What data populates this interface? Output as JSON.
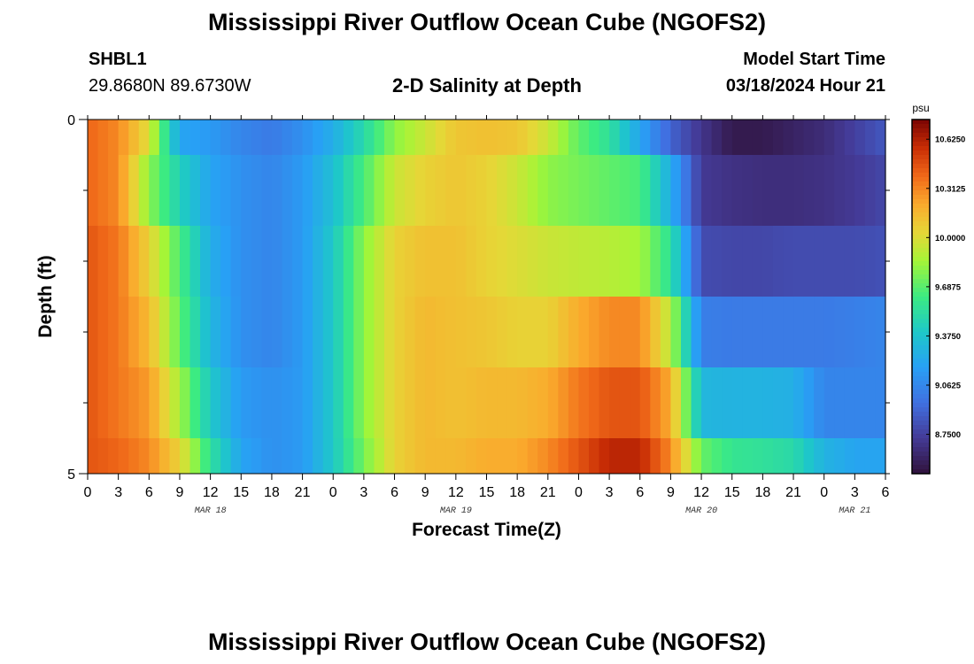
{
  "header": {
    "title": "Mississippi River Outflow Ocean Cube (NGOFS2)",
    "station": "SHBL1",
    "coords": "29.8680N  89.6730W",
    "subtitle": "2-D Salinity at Depth",
    "model_start_label": "Model Start Time",
    "model_start_value": "03/18/2024 Hour 21"
  },
  "footer": {
    "title": "Mississippi River Outflow Ocean Cube (NGOFS2)"
  },
  "chart_data": {
    "type": "heatmap",
    "xlabel": "Forecast Time(Z)",
    "ylabel": "Depth (ft)",
    "units": "psu",
    "ylim": [
      0,
      5
    ],
    "y_tick_labels": [
      "0",
      "5"
    ],
    "x_tick_labels": [
      "0",
      "3",
      "6",
      "9",
      "12",
      "15",
      "18",
      "21",
      "0",
      "3",
      "6",
      "9",
      "12",
      "15",
      "18",
      "21",
      "0",
      "3",
      "6",
      "9",
      "12",
      "15",
      "18",
      "21",
      "0",
      "3",
      "6"
    ],
    "date_labels": [
      {
        "label": "MAR 18",
        "tick_index": 4
      },
      {
        "label": "MAR 19",
        "tick_index": 12
      },
      {
        "label": "MAR 20",
        "tick_index": 20
      },
      {
        "label": "MAR 21",
        "tick_index": 25
      }
    ],
    "colorbar_labels": [
      "10.6250",
      "10.3125",
      "10.0000",
      "9.6875",
      "9.3750",
      "9.0625",
      "8.7500"
    ],
    "value_range": [
      8.5,
      10.75
    ],
    "row_bounds_ft": [
      0,
      0.5,
      1.5,
      2.5,
      3.5,
      4.5,
      5
    ],
    "time_hours": [
      0,
      3,
      6,
      9,
      12,
      15,
      18,
      21,
      24,
      27,
      30,
      33,
      36,
      39,
      42,
      45,
      48,
      51,
      54,
      57,
      60,
      63,
      66,
      69,
      72,
      75,
      78
    ],
    "values": [
      [
        10.4,
        10.3,
        10.0,
        9.2,
        9.15,
        9.05,
        9.0,
        9.1,
        9.25,
        9.5,
        9.8,
        9.95,
        10.1,
        10.12,
        10.1,
        9.95,
        9.7,
        9.55,
        9.2,
        8.9,
        8.7,
        8.55,
        8.55,
        8.6,
        8.65,
        8.75,
        8.85
      ],
      [
        10.4,
        10.3,
        9.8,
        9.45,
        9.2,
        9.1,
        9.05,
        9.15,
        9.35,
        9.65,
        9.95,
        10.05,
        10.1,
        10.05,
        9.95,
        9.8,
        9.75,
        9.7,
        9.65,
        9.25,
        8.72,
        8.68,
        8.66,
        8.66,
        8.68,
        8.72,
        8.78
      ],
      [
        10.45,
        10.35,
        10.05,
        9.65,
        9.25,
        9.1,
        9.05,
        9.15,
        9.4,
        9.8,
        10.05,
        10.12,
        10.12,
        10.05,
        10.0,
        9.95,
        9.92,
        9.9,
        9.85,
        9.55,
        8.8,
        8.78,
        8.78,
        8.8,
        8.8,
        8.8,
        8.82
      ],
      [
        10.45,
        10.35,
        10.15,
        9.7,
        9.3,
        9.1,
        9.05,
        9.15,
        9.4,
        9.8,
        10.05,
        10.15,
        10.12,
        10.1,
        10.05,
        10.05,
        10.2,
        10.3,
        10.3,
        9.9,
        9.02,
        9.0,
        9.0,
        9.0,
        9.0,
        9.02,
        9.05
      ],
      [
        10.45,
        10.35,
        10.25,
        9.85,
        9.4,
        9.15,
        9.1,
        9.15,
        9.4,
        9.8,
        10.05,
        10.15,
        10.12,
        10.15,
        10.15,
        10.2,
        10.35,
        10.45,
        10.45,
        10.2,
        9.3,
        9.28,
        9.28,
        9.26,
        9.05,
        9.05,
        9.05
      ],
      [
        10.45,
        10.4,
        10.3,
        10.05,
        9.55,
        9.2,
        9.1,
        9.15,
        9.4,
        9.75,
        10.05,
        10.15,
        10.15,
        10.2,
        10.2,
        10.3,
        10.45,
        10.6,
        10.6,
        10.3,
        9.72,
        9.58,
        9.55,
        9.5,
        9.28,
        9.2,
        9.2
      ]
    ]
  }
}
